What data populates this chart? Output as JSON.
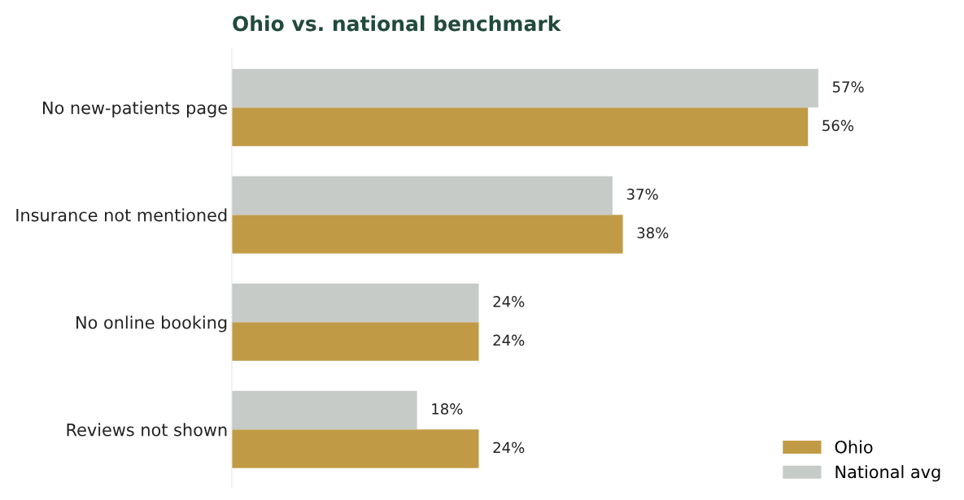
{
  "chart_data": {
    "type": "bar",
    "orientation": "horizontal",
    "title": "Ohio vs. national benchmark",
    "categories": [
      "No new-patients page",
      "Insurance not mentioned",
      "No online booking",
      "Reviews not shown"
    ],
    "series": [
      {
        "name": "Ohio",
        "color": "#c19a45",
        "values": [
          56,
          38,
          24,
          24
        ],
        "value_labels": [
          "56%",
          "38%",
          "24%",
          "24%"
        ]
      },
      {
        "name": "National avg",
        "color": "#c7cbc8",
        "values": [
          57,
          37,
          24,
          18
        ],
        "value_labels": [
          "57%",
          "37%",
          "24%",
          "18%"
        ]
      }
    ],
    "legend": "bottom right",
    "grid": false,
    "tick_labels": "y"
  }
}
